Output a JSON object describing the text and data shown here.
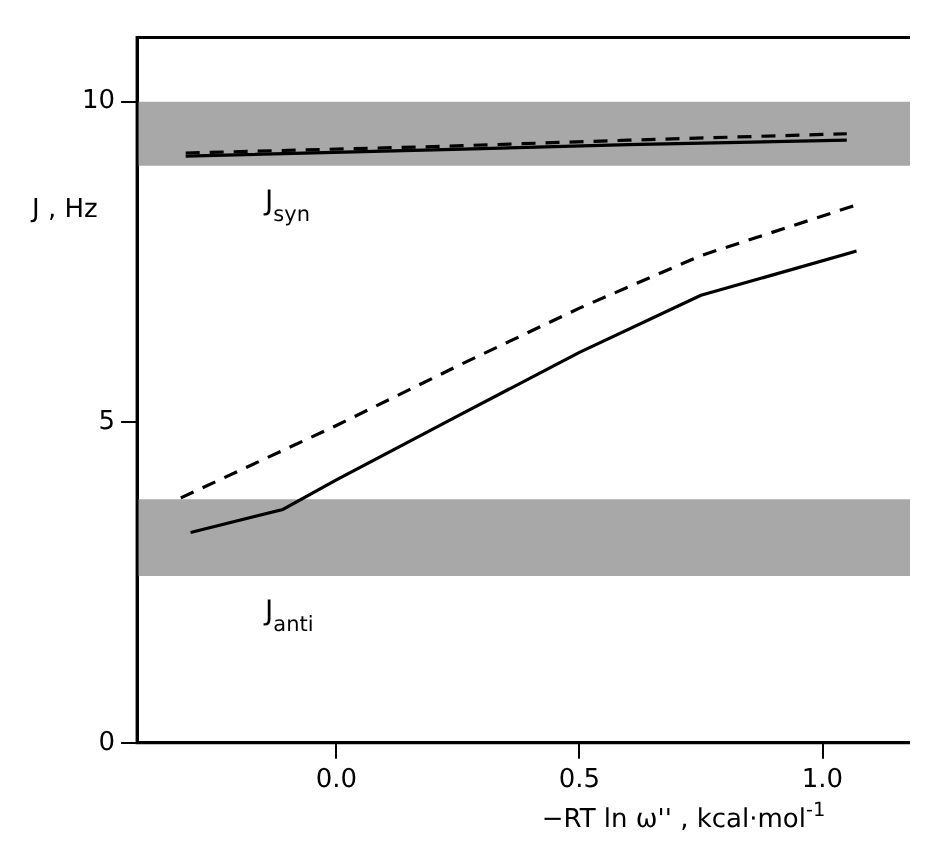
{
  "chart_data": {
    "type": "line",
    "xlabel": "−RT ln ω'' , kcal·mol$^{-1}$",
    "ylabel": "J , Hz",
    "xlim": [
      -0.41,
      1.18
    ],
    "ylim": [
      0,
      11
    ],
    "xticks": [
      {
        "value": 0,
        "label": "0.0"
      },
      {
        "value": 0.5,
        "label": "0.5"
      },
      {
        "value": 1,
        "label": "1.0"
      }
    ],
    "yticks": [
      0,
      5,
      10
    ],
    "grid": false,
    "legend": false,
    "marker": "none",
    "series": [
      {
        "color": "#000000",
        "line_style": "solid",
        "x": [
          -0.31,
          0.2,
          0.6,
          1.05
        ],
        "values": [
          9.15,
          9.25,
          9.33,
          9.4
        ]
      },
      {
        "color": "#000000",
        "line_style": "dashed",
        "x": [
          -0.31,
          0.2,
          0.6,
          1.05
        ],
        "values": [
          9.2,
          9.3,
          9.4,
          9.5
        ]
      },
      {
        "color": "#000000",
        "line_style": "dashed",
        "x": [
          -0.32,
          0.0,
          0.25,
          0.5,
          0.75,
          1.07
        ],
        "values": [
          3.82,
          4.95,
          5.88,
          6.78,
          7.6,
          8.39
        ]
      },
      {
        "color": "#000000",
        "line_style": "solid",
        "x": [
          -0.3,
          -0.11,
          0.0,
          0.25,
          0.5,
          0.75,
          1.07
        ],
        "values": [
          3.28,
          3.64,
          4.1,
          5.1,
          6.09,
          6.98,
          7.67
        ]
      }
    ],
    "bands": [
      {
        "axis": "y",
        "from": 9.0,
        "to": 10.0,
        "label": "J$_{syn}$",
        "color": "#a8a8a8"
      },
      {
        "axis": "y",
        "from": 2.6,
        "to": 3.8,
        "label": "J$_{anti}$",
        "color": "#a8a8a8"
      }
    ]
  }
}
